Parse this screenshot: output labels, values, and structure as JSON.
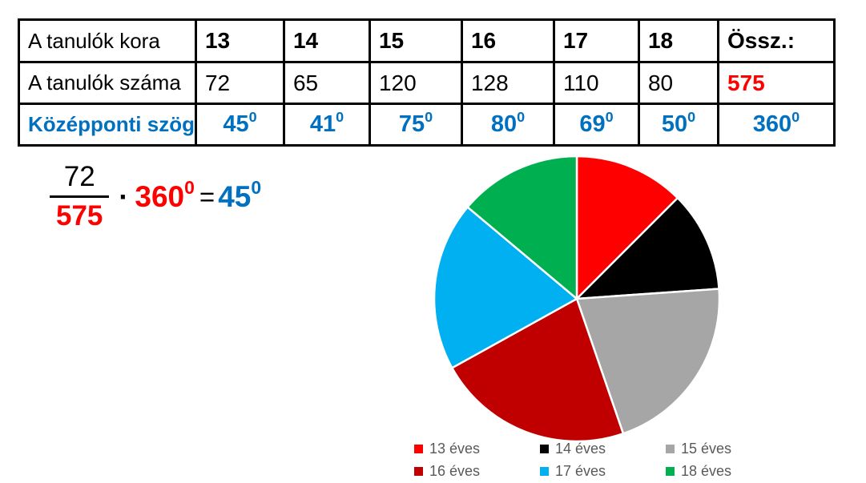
{
  "colors": {
    "accent_blue": "#0070C0",
    "accent_red": "#FF0000",
    "legend_text": "#595959",
    "table_border": "#000000"
  },
  "table": {
    "row_age_label": "A tanulók kora",
    "row_count_label": "A tanulók száma",
    "row_angle_label": "Középponti szög",
    "total_label": "Össz.:",
    "ages": [
      "13",
      "14",
      "15",
      "16",
      "17",
      "18"
    ],
    "counts": [
      "72",
      "65",
      "120",
      "128",
      "110",
      "80"
    ],
    "total_count": "575",
    "angles": [
      "45",
      "41",
      "75",
      "80",
      "69",
      "50"
    ],
    "total_angle": "360",
    "sup": "0"
  },
  "formula": {
    "numerator": "72",
    "denominator": "575",
    "dot": "·",
    "multiplier": "360",
    "multiplier_sup": "0",
    "equals": "=",
    "result": "45",
    "result_sup": "0"
  },
  "chart_data": {
    "type": "pie",
    "title": "",
    "categories": [
      "13 éves",
      "14 éves",
      "15 éves",
      "16 éves",
      "17 éves",
      "18 éves"
    ],
    "values": [
      72,
      65,
      120,
      128,
      110,
      80
    ],
    "central_angles_deg": [
      45,
      41,
      75,
      80,
      69,
      50
    ],
    "total": 575,
    "total_angle_deg": 360,
    "colors": [
      "#FF0000",
      "#000000",
      "#A6A6A6",
      "#C00000",
      "#00B0F0",
      "#00B050"
    ],
    "start_angle_deg": 0,
    "direction": "clockwise",
    "radius_px": 178,
    "slice_border_color": "#FFFFFF",
    "legend_position": "bottom",
    "legend_rows": 2,
    "legend_text_color": "#595959"
  }
}
